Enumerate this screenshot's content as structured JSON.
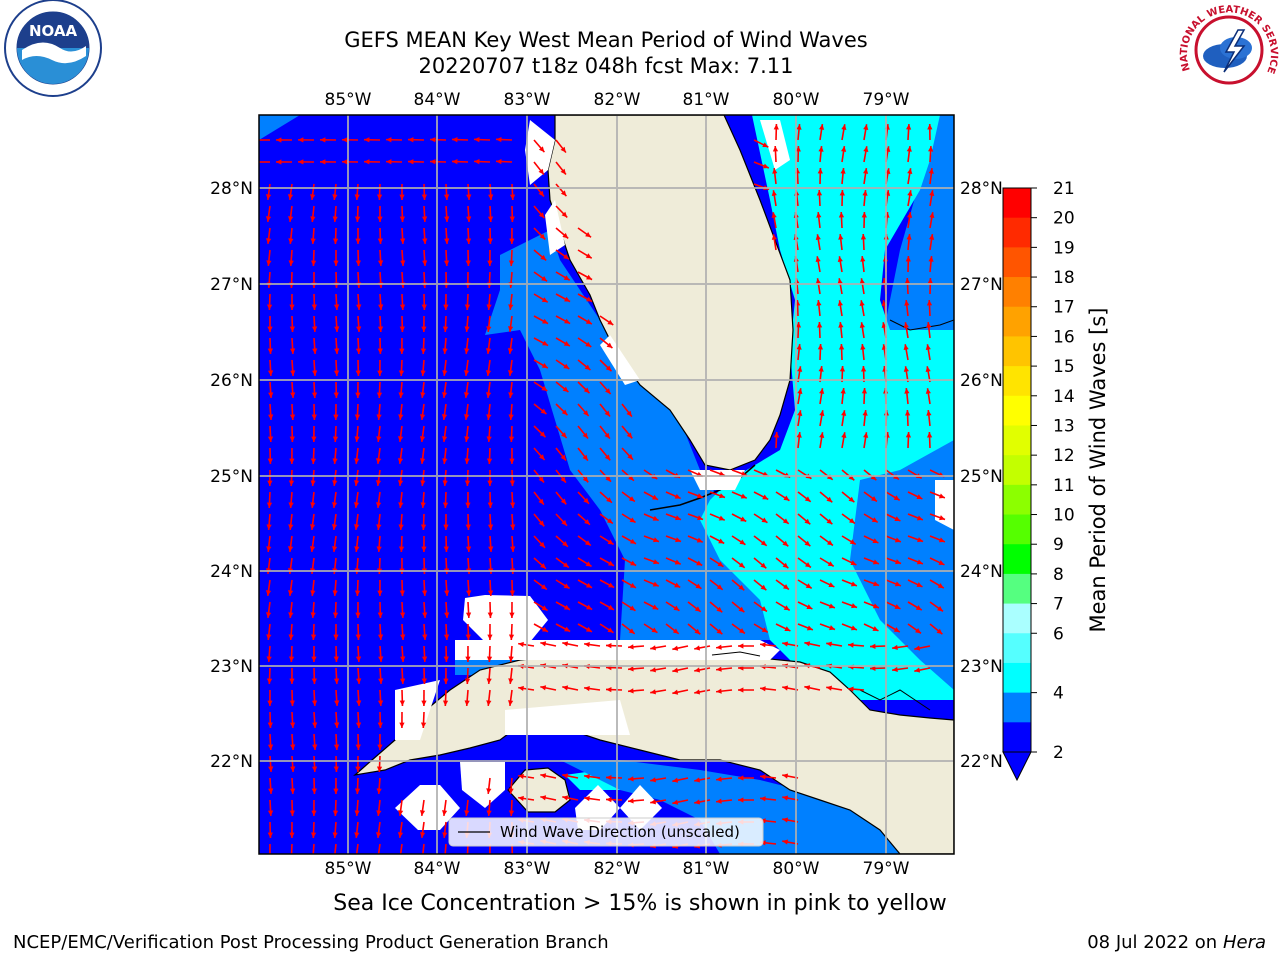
{
  "title": {
    "line1": "GEFS MEAN Key West Mean Period of Wind Waves",
    "line2": "20220707 t18z 048h fcst   Max: 7.11"
  },
  "map": {
    "lon_labels": [
      "85°W",
      "84°W",
      "83°W",
      "82°W",
      "81°W",
      "80°W",
      "79°W"
    ],
    "lat_labels": [
      "28°N",
      "27°N",
      "26°N",
      "25°N",
      "24°N",
      "23°N",
      "22°N"
    ],
    "legend_label": "Wind Wave Direction (unscaled)",
    "colors": {
      "deep_blue": "#0000ff",
      "mid_blue": "#0080ff",
      "cyan": "#00ffff",
      "land": "#efecd9",
      "arrow": "#ff0000"
    }
  },
  "colorbar": {
    "label": "Mean Period of Wind Waves [s]",
    "ticks": [
      "21",
      "20",
      "19",
      "18",
      "17",
      "16",
      "15",
      "14",
      "13",
      "12",
      "11",
      "10",
      "9",
      "8",
      "7",
      "6",
      "4",
      "2"
    ],
    "colors_top_to_bottom": [
      "#ff0000",
      "#ff2a00",
      "#ff5500",
      "#ff8000",
      "#ffa200",
      "#ffc400",
      "#ffe400",
      "#ffff00",
      "#e1ff00",
      "#c3ff00",
      "#8cff00",
      "#55ff00",
      "#00ff00",
      "#55ff80",
      "#aaffff",
      "#55ffff",
      "#00ffff",
      "#0080ff",
      "#0000ff"
    ]
  },
  "logos": {
    "left": "NOAA",
    "right": "NATIONAL WEATHER SERVICE"
  },
  "subnote": "Sea Ice Concentration > 15% is shown in pink to yellow",
  "footer": {
    "left": "NCEP/EMC/Verification Post Processing Product Generation Branch",
    "right_date": "08 Jul 2022 on ",
    "right_host": "Hera"
  }
}
